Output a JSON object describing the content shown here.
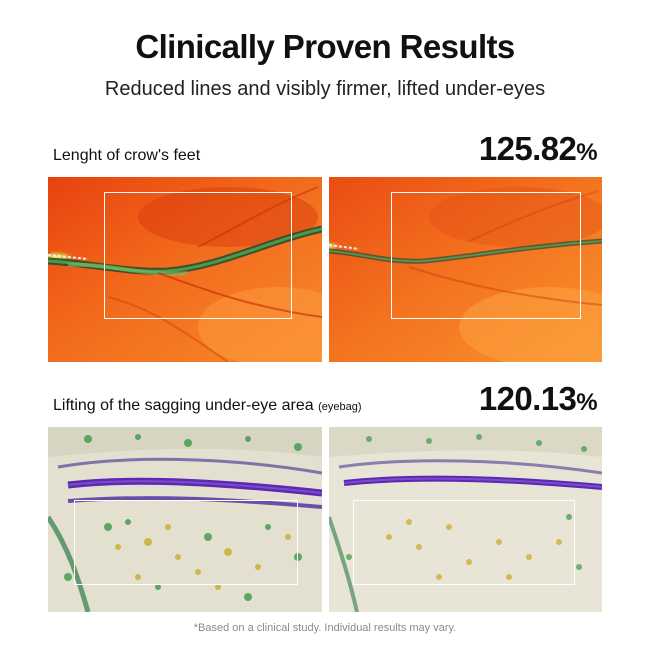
{
  "header": {
    "title": "Clinically Proven Results",
    "subtitle": "Reduced lines and visibly firmer, lifted under-eyes"
  },
  "results": [
    {
      "label": "Lenght of crow's feet",
      "label_note": "",
      "value": "125.82",
      "unit": "%"
    },
    {
      "label": "Lifting of the sagging under-eye area",
      "label_note": "(eyebag)",
      "value": "120.13",
      "unit": "%"
    }
  ],
  "footnote": "*Based on a clinical study. Individual results may vary.",
  "colors": {
    "heat_base": "#f06018",
    "heat_dark": "#d8380c",
    "heat_light": "#ff9a3a",
    "heat_line": "#2e6a3a",
    "texture_base": "#e6e2d4",
    "texture_purple": "#5a2ab0",
    "texture_green": "#3a9a48",
    "texture_yellow": "#c8a820"
  }
}
